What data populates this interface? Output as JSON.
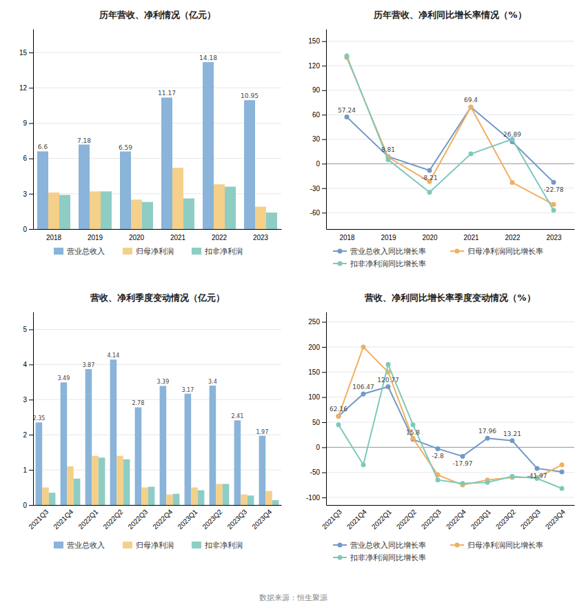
{
  "chart_data": [
    {
      "type": "bar",
      "title": "历年营收、净利情况（亿元）",
      "categories": [
        "2018",
        "2019",
        "2020",
        "2021",
        "2022",
        "2023"
      ],
      "series": [
        {
          "name": "营业总收入",
          "color": "#8ab4d9",
          "values": [
            6.6,
            7.18,
            6.59,
            11.17,
            14.18,
            10.95
          ],
          "data_labels": true
        },
        {
          "name": "归母净利润",
          "color": "#f5d08a",
          "values": [
            3.1,
            3.2,
            2.5,
            5.2,
            3.8,
            1.9
          ]
        },
        {
          "name": "扣非净利润",
          "color": "#8ecdc4",
          "values": [
            2.9,
            3.2,
            2.3,
            2.6,
            3.6,
            1.4
          ]
        }
      ],
      "ylim": [
        0,
        17
      ],
      "yticks": [
        0,
        3,
        6,
        9,
        12,
        15
      ],
      "grid": true,
      "legend": "bottom"
    },
    {
      "type": "line",
      "title": "历年营收、净利同比增长率情况（%）",
      "categories": [
        "2018",
        "2019",
        "2020",
        "2021",
        "2022",
        "2023"
      ],
      "series": [
        {
          "name": "营业总收入同比增长率",
          "color": "#7199c8",
          "marker": "circle",
          "line_style": "solid",
          "values": [
            57.24,
            8.81,
            -8.21,
            69.4,
            26.89,
            -22.78
          ],
          "data_labels": true
        },
        {
          "name": "归母净利润同比增长率",
          "color": "#f0b060",
          "marker": "circle",
          "line_style": "solid",
          "values": [
            130.0,
            8.0,
            -22.0,
            69.4,
            -23.0,
            -49.87
          ]
        },
        {
          "name": "扣非净利润同比增长率",
          "color": "#7ec8ba",
          "marker": "circle",
          "line_style": "solid",
          "values": [
            132.0,
            5.0,
            -35.0,
            12.0,
            30.0,
            -57.0
          ]
        }
      ],
      "ylim": [
        -80,
        165
      ],
      "yticks": [
        -60,
        -30,
        0,
        30,
        60,
        90,
        120,
        150
      ],
      "grid": true,
      "legend": "bottom"
    },
    {
      "type": "bar",
      "title": "营收、净利季度变动情况（亿元）",
      "categories": [
        "2021Q3",
        "2021Q4",
        "2022Q1",
        "2022Q2",
        "2022Q3",
        "2022Q4",
        "2023Q1",
        "2023Q2",
        "2023Q3",
        "2023Q4"
      ],
      "series": [
        {
          "name": "营业总收入",
          "color": "#8ab4d9",
          "values": [
            2.35,
            3.49,
            3.87,
            4.14,
            2.78,
            3.39,
            3.17,
            3.4,
            2.41,
            1.97
          ],
          "data_labels": true
        },
        {
          "name": "归母净利润",
          "color": "#f5d08a",
          "values": [
            0.5,
            1.1,
            1.4,
            1.4,
            0.5,
            0.3,
            0.5,
            0.6,
            0.3,
            0.4
          ]
        },
        {
          "name": "扣非净利润",
          "color": "#8ecdc4",
          "values": [
            0.35,
            0.75,
            1.35,
            1.3,
            0.52,
            0.32,
            0.42,
            0.6,
            0.27,
            0.14
          ]
        }
      ],
      "ylim": [
        0,
        5.5
      ],
      "yticks": [
        0,
        1,
        2,
        3,
        4,
        5
      ],
      "grid": true,
      "legend": "bottom"
    },
    {
      "type": "line",
      "title": "营收、净利同比增长率季度变动情况（%）",
      "categories": [
        "2021Q3",
        "2021Q4",
        "2022Q1",
        "2022Q2",
        "2022Q3",
        "2022Q4",
        "2023Q1",
        "2023Q2",
        "2023Q3",
        "2023Q4"
      ],
      "series": [
        {
          "name": "营业总收入同比增长率",
          "color": "#7199c8",
          "marker": "circle",
          "line_style": "solid",
          "values": [
            62.16,
            106.47,
            120.77,
            15.8,
            -2.8,
            -17.97,
            17.96,
            13.21,
            -41.97,
            -49.0
          ],
          "data_labels": true,
          "value_labels": [
            "62.16",
            "106.47",
            "120.77",
            "15.8",
            "-2.8",
            "-17.97",
            "17.96",
            "13.21",
            "-41.97",
            null
          ]
        },
        {
          "name": "归母净利润同比增长率",
          "color": "#f0b060",
          "marker": "circle",
          "line_style": "solid",
          "values": [
            62.0,
            200.0,
            150.0,
            17.93,
            -55.0,
            -75.0,
            -65.0,
            -60.0,
            -60.0,
            -35.0
          ]
        },
        {
          "name": "扣非净利润同比增长率",
          "color": "#7ec8ba",
          "marker": "circle",
          "line_style": "solid",
          "values": [
            45.0,
            -35.0,
            165.0,
            45.0,
            -65.0,
            -72.0,
            -70.0,
            -58.0,
            -62.0,
            -82.0
          ]
        }
      ],
      "ylim": [
        -115,
        270
      ],
      "yticks": [
        -100,
        -50,
        0,
        50,
        100,
        150,
        200,
        250
      ],
      "grid": true,
      "legend": "bottom"
    }
  ],
  "annotations": [
    "数据来源：恒生聚源"
  ]
}
